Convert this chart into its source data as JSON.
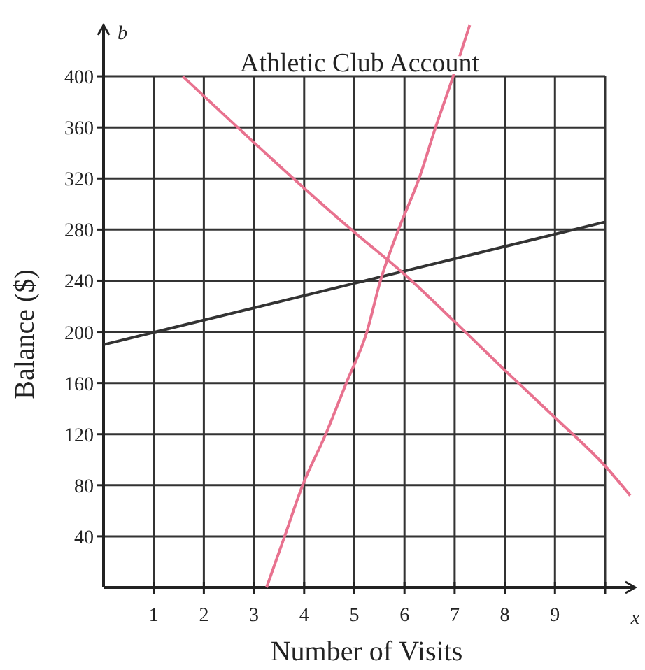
{
  "chart_data": {
    "type": "line",
    "title": "Athletic Club Account",
    "xlabel": "Number of Visits",
    "ylabel": "Balance ($)",
    "annotations": [
      "b",
      "x"
    ],
    "xlim": [
      0,
      10.6
    ],
    "ylim": [
      0,
      440
    ],
    "xticks": [
      1,
      2,
      3,
      4,
      5,
      6,
      7,
      8,
      9,
      {
        "value": 10,
        "label": null
      }
    ],
    "yticks": [
      40,
      80,
      120,
      160,
      200,
      240,
      280,
      320,
      360,
      400
    ],
    "grid": true,
    "marker": "none",
    "line_style": "solid",
    "series": [
      {
        "color": "#333333",
        "x": [
          0,
          10
        ],
        "values": [
          190,
          286
        ]
      },
      {
        "color": "#e8728f",
        "x": [
          1.58,
          5,
          6,
          7,
          8,
          9,
          10,
          10.5
        ],
        "values": [
          400,
          278,
          245,
          208,
          170,
          133,
          95,
          72
        ]
      },
      {
        "color": "#e8728f",
        "x": [
          3.25,
          3.61,
          3.97,
          4.43,
          4.84,
          5.25,
          5.52,
          5.88,
          6.29,
          6.62,
          6.97,
          7.3
        ],
        "values": [
          0,
          40,
          80,
          120,
          160,
          200,
          240,
          280,
          320,
          360,
          400,
          440
        ]
      }
    ]
  }
}
